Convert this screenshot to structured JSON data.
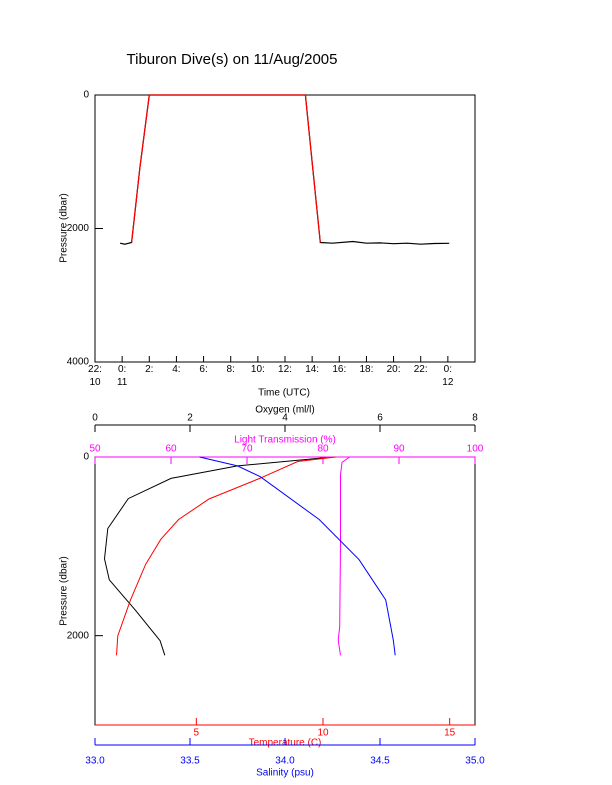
{
  "chart_data": [
    {
      "type": "line",
      "title": "Tiburon Dive(s) on 11/Aug/2005",
      "xlabel": "Time (UTC)",
      "ylabel": "Pressure (dbar)",
      "xlim": [
        22,
        50
      ],
      "xticks": [
        {
          "value": 22,
          "label": "22:\n10"
        },
        {
          "value": 24,
          "label": "0:\n11"
        },
        {
          "value": 26,
          "label": "2:"
        },
        {
          "value": 28,
          "label": "4:"
        },
        {
          "value": 30,
          "label": "6:"
        },
        {
          "value": 32,
          "label": "8:"
        },
        {
          "value": 34,
          "label": "10:"
        },
        {
          "value": 36,
          "label": "12:"
        },
        {
          "value": 38,
          "label": "14:"
        },
        {
          "value": 40,
          "label": "16:"
        },
        {
          "value": 42,
          "label": "18:"
        },
        {
          "value": 44,
          "label": "20:"
        },
        {
          "value": 46,
          "label": "22:"
        },
        {
          "value": 48,
          "label": "0:\n12"
        }
      ],
      "ylim": [
        0,
        4000
      ],
      "yticks": [
        0,
        2000,
        4000
      ],
      "y_inverted": true,
      "x": [
        23.85,
        24.2,
        24.7,
        25.3,
        26.0,
        30,
        34,
        37.5,
        38.0,
        38.6,
        39.5,
        41,
        42,
        43,
        44,
        45,
        46,
        47,
        48.1
      ],
      "series": [
        {
          "color": "#000000",
          "values": [
            2220,
            2235,
            2210,
            1100,
            0,
            0,
            0,
            0,
            1000,
            2210,
            2220,
            2195,
            2220,
            2215,
            2228,
            2220,
            2235,
            2225,
            2222
          ]
        },
        {
          "color": "#ff0000",
          "values": [
            null,
            null,
            2210,
            1100,
            0,
            0,
            0,
            0,
            1000,
            2210,
            null,
            null,
            null,
            null,
            null,
            null,
            null,
            null,
            null
          ]
        }
      ]
    },
    {
      "type": "profile",
      "ylabel": "Pressure (dbar)",
      "ylim": [
        0,
        3000
      ],
      "yticks": [
        0,
        2000
      ],
      "y_inverted": true,
      "series": [
        {
          "axis_label": "Oxygen (ml/l)",
          "color": "#000000",
          "xlim": [
            0,
            8
          ],
          "xticks": [
            0,
            2,
            4,
            6,
            8
          ],
          "x": [
            5.0,
            3.0,
            1.6,
            0.7,
            0.27,
            0.2,
            0.3,
            0.85,
            1.37,
            1.47
          ],
          "values": [
            0,
            100,
            240,
            466,
            800,
            1140,
            1375,
            1715,
            2056,
            2220
          ]
        },
        {
          "axis_label": "Light Transmission (%)",
          "color": "#ff00ff",
          "xlim": [
            50,
            100
          ],
          "xticks": [
            50,
            60,
            70,
            80,
            90,
            100
          ],
          "x": [
            83.5,
            82.5,
            82.3,
            82.3,
            82.2,
            82.0,
            82.3
          ],
          "values": [
            0,
            60,
            200,
            1000,
            1900,
            2050,
            2220
          ]
        },
        {
          "axis_label": "Temperature (C)",
          "color": "#ff0000",
          "xlim": [
            1,
            16
          ],
          "xticks": [
            5,
            10,
            15
          ],
          "x": [
            10.5,
            9.0,
            7.5,
            5.5,
            4.3,
            3.6,
            3.0,
            2.4,
            1.9,
            1.85
          ],
          "values": [
            0,
            50,
            240,
            470,
            700,
            920,
            1200,
            1600,
            2000,
            2220
          ]
        },
        {
          "axis_label": "Salinity (psu)",
          "color": "#0000ff",
          "xlim": [
            33,
            35
          ],
          "xticks": [
            {
              "value": 33,
              "label": "33.0"
            },
            {
              "value": 33.5,
              "label": "33.5"
            },
            {
              "value": 34,
              "label": "34.0"
            },
            {
              "value": 34.5,
              "label": "34.5"
            },
            {
              "value": 35,
              "label": "35.0"
            }
          ],
          "x": [
            33.55,
            33.75,
            33.87,
            34.18,
            34.39,
            34.53,
            34.57,
            34.58
          ],
          "values": [
            0,
            100,
            220,
            700,
            1150,
            1600,
            2050,
            2220
          ]
        }
      ]
    }
  ]
}
